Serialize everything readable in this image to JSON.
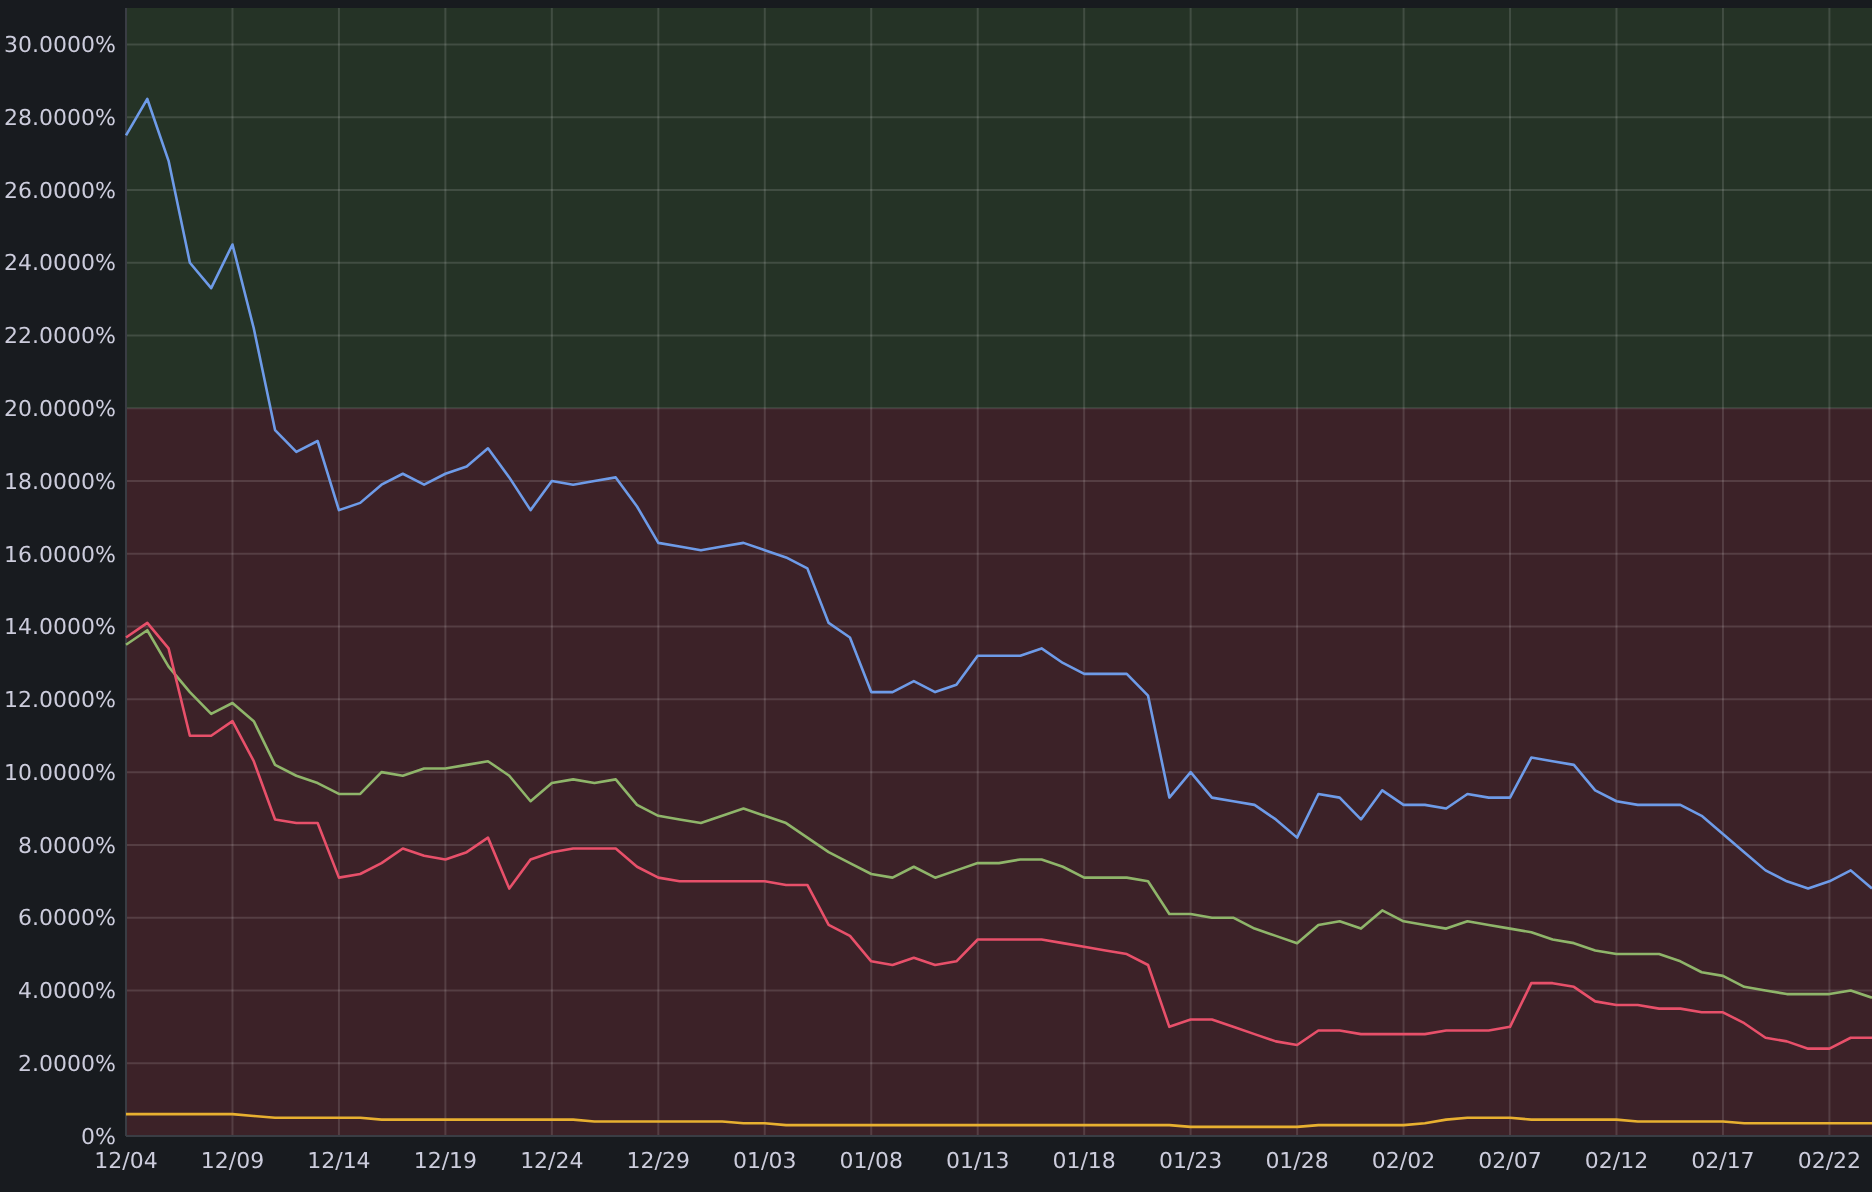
{
  "chart_data": {
    "type": "line",
    "ylim": [
      0,
      31
    ],
    "categories": [
      "12/04",
      null,
      null,
      null,
      null,
      "12/09",
      null,
      null,
      null,
      null,
      "12/14",
      null,
      null,
      null,
      null,
      "12/19",
      null,
      null,
      null,
      null,
      "12/24",
      null,
      null,
      null,
      null,
      "12/29",
      null,
      null,
      null,
      null,
      "01/03",
      null,
      null,
      null,
      null,
      "01/08",
      null,
      null,
      null,
      null,
      "01/13",
      null,
      null,
      null,
      null,
      "01/18",
      null,
      null,
      null,
      null,
      "01/23",
      null,
      null,
      null,
      null,
      "01/28",
      null,
      null,
      null,
      null,
      "02/02",
      null,
      null,
      null,
      null,
      "02/07",
      null,
      null,
      null,
      null,
      "02/12",
      null,
      null,
      null,
      null,
      "02/17",
      null,
      null,
      null,
      null,
      "02/22",
      null,
      null
    ],
    "yticks": [
      {
        "value": 0,
        "label": "0%"
      },
      {
        "value": 2,
        "label": "2.0000%"
      },
      {
        "value": 4,
        "label": "4.0000%"
      },
      {
        "value": 6,
        "label": "6.0000%"
      },
      {
        "value": 8,
        "label": "8.0000%"
      },
      {
        "value": 10,
        "label": "10.0000%"
      },
      {
        "value": 12,
        "label": "12.0000%"
      },
      {
        "value": 14,
        "label": "14.0000%"
      },
      {
        "value": 16,
        "label": "16.0000%"
      },
      {
        "value": 18,
        "label": "18.0000%"
      },
      {
        "value": 20,
        "label": "20.0000%"
      },
      {
        "value": 22,
        "label": "22.0000%"
      },
      {
        "value": 24,
        "label": "24.0000%"
      },
      {
        "value": 26,
        "label": "26.0000%"
      },
      {
        "value": 28,
        "label": "28.0000%"
      },
      {
        "value": 30,
        "label": "30.0000%"
      }
    ],
    "grid": true,
    "marker": "none",
    "line_style": "solid",
    "bands": [
      {
        "axis": "y",
        "from": 20,
        "to": 31,
        "color": "#253326"
      },
      {
        "axis": "y",
        "from": 0,
        "to": 20,
        "color": "#3c2228"
      }
    ],
    "series": [
      {
        "color": "#6e9be8",
        "values": [
          27.5,
          28.5,
          26.8,
          24.0,
          23.3,
          24.5,
          22.2,
          19.4,
          18.8,
          19.1,
          17.2,
          17.4,
          17.9,
          18.2,
          17.9,
          18.2,
          18.4,
          18.9,
          18.1,
          17.2,
          18.0,
          17.9,
          18.0,
          18.1,
          17.3,
          16.3,
          16.2,
          16.1,
          16.2,
          16.3,
          16.1,
          15.9,
          15.6,
          14.1,
          13.7,
          12.2,
          12.2,
          12.5,
          12.2,
          12.4,
          13.2,
          13.2,
          13.2,
          13.4,
          13.0,
          12.7,
          12.7,
          12.7,
          12.1,
          9.3,
          10.0,
          9.3,
          9.2,
          9.1,
          8.7,
          8.2,
          9.4,
          9.3,
          8.7,
          9.5,
          9.1,
          9.1,
          9.0,
          9.4,
          9.3,
          9.3,
          10.4,
          10.3,
          10.2,
          9.5,
          9.2,
          9.1,
          9.1,
          9.1,
          8.8,
          8.3,
          7.8,
          7.3,
          7.0,
          6.8,
          7.0,
          7.3,
          6.8
        ]
      },
      {
        "color": "#8fb56a",
        "values": [
          13.5,
          13.9,
          12.9,
          12.2,
          11.6,
          11.9,
          11.4,
          10.2,
          9.9,
          9.7,
          9.4,
          9.4,
          10.0,
          9.9,
          10.1,
          10.1,
          10.2,
          10.3,
          9.9,
          9.2,
          9.7,
          9.8,
          9.7,
          9.8,
          9.1,
          8.8,
          8.7,
          8.6,
          8.8,
          9.0,
          8.8,
          8.6,
          8.2,
          7.8,
          7.5,
          7.2,
          7.1,
          7.4,
          7.1,
          7.3,
          7.5,
          7.5,
          7.6,
          7.6,
          7.4,
          7.1,
          7.1,
          7.1,
          7.0,
          6.1,
          6.1,
          6.0,
          6.0,
          5.7,
          5.5,
          5.3,
          5.8,
          5.9,
          5.7,
          6.2,
          5.9,
          5.8,
          5.7,
          5.9,
          5.8,
          5.7,
          5.6,
          5.4,
          5.3,
          5.1,
          5.0,
          5.0,
          5.0,
          4.8,
          4.5,
          4.4,
          4.1,
          4.0,
          3.9,
          3.9,
          3.9,
          4.0,
          3.8
        ]
      },
      {
        "color": "#e8506a",
        "values": [
          13.7,
          14.1,
          13.4,
          11.0,
          11.0,
          11.4,
          10.3,
          8.7,
          8.6,
          8.6,
          7.1,
          7.2,
          7.5,
          7.9,
          7.7,
          7.6,
          7.8,
          8.2,
          6.8,
          7.6,
          7.8,
          7.9,
          7.9,
          7.9,
          7.4,
          7.1,
          7.0,
          7.0,
          7.0,
          7.0,
          7.0,
          6.9,
          6.9,
          5.8,
          5.5,
          4.8,
          4.7,
          4.9,
          4.7,
          4.8,
          5.4,
          5.4,
          5.4,
          5.4,
          5.3,
          5.2,
          5.1,
          5.0,
          4.7,
          3.0,
          3.2,
          3.2,
          3.0,
          2.8,
          2.6,
          2.5,
          2.9,
          2.9,
          2.8,
          2.8,
          2.8,
          2.8,
          2.9,
          2.9,
          2.9,
          3.0,
          4.2,
          4.2,
          4.1,
          3.7,
          3.6,
          3.6,
          3.5,
          3.5,
          3.4,
          3.4,
          3.1,
          2.7,
          2.6,
          2.4,
          2.4,
          2.7,
          2.7
        ]
      },
      {
        "color": "#e8b030",
        "values": [
          0.6,
          0.6,
          0.6,
          0.6,
          0.6,
          0.6,
          0.55,
          0.5,
          0.5,
          0.5,
          0.5,
          0.5,
          0.45,
          0.45,
          0.45,
          0.45,
          0.45,
          0.45,
          0.45,
          0.45,
          0.45,
          0.45,
          0.4,
          0.4,
          0.4,
          0.4,
          0.4,
          0.4,
          0.4,
          0.35,
          0.35,
          0.3,
          0.3,
          0.3,
          0.3,
          0.3,
          0.3,
          0.3,
          0.3,
          0.3,
          0.3,
          0.3,
          0.3,
          0.3,
          0.3,
          0.3,
          0.3,
          0.3,
          0.3,
          0.3,
          0.25,
          0.25,
          0.25,
          0.25,
          0.25,
          0.25,
          0.3,
          0.3,
          0.3,
          0.3,
          0.3,
          0.35,
          0.45,
          0.5,
          0.5,
          0.5,
          0.45,
          0.45,
          0.45,
          0.45,
          0.45,
          0.4,
          0.4,
          0.4,
          0.4,
          0.4,
          0.35,
          0.35,
          0.35,
          0.35,
          0.35,
          0.35,
          0.35
        ]
      }
    ]
  }
}
